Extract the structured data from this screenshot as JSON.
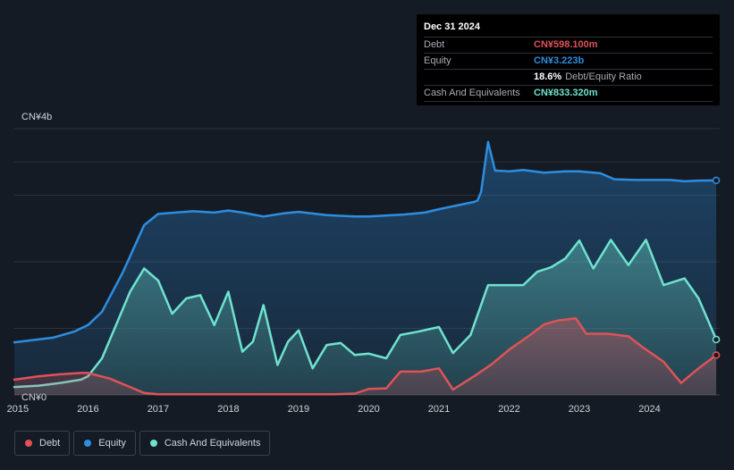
{
  "tooltip": {
    "date": "Dec 31 2024",
    "debt_label": "Debt",
    "debt_value": "CN¥598.100m",
    "equity_label": "Equity",
    "equity_value": "CN¥3.223b",
    "ratio_value": "18.6%",
    "ratio_label": "Debt/Equity Ratio",
    "cash_label": "Cash And Equivalents",
    "cash_value": "CN¥833.320m"
  },
  "colors": {
    "debt": "#e05258",
    "equity": "#2d8ee0",
    "cash": "#6fe3cf",
    "background": "#151b24"
  },
  "legend": [
    {
      "label": "Debt",
      "color": "#e05258"
    },
    {
      "label": "Equity",
      "color": "#2d8ee0"
    },
    {
      "label": "Cash And Equivalents",
      "color": "#6fe3cf"
    }
  ],
  "chart_data": {
    "type": "area",
    "y_unit": "CN¥ billions",
    "ylim": [
      0,
      4
    ],
    "xlim": [
      2014.95,
      2025.0
    ],
    "ytick_labels": [
      {
        "value": 4,
        "label": "CN¥4b"
      },
      {
        "value": 0,
        "label": "CN¥0"
      }
    ],
    "gridlines": [
      4,
      3.5,
      3,
      2,
      1
    ],
    "x_ticks": [
      2015,
      2016,
      2017,
      2018,
      2019,
      2020,
      2021,
      2022,
      2023,
      2024
    ],
    "x_tick_labels": [
      "2015",
      "2016",
      "2017",
      "2018",
      "2019",
      "2020",
      "2021",
      "2022",
      "2023",
      "2024"
    ],
    "series": [
      {
        "name": "Equity",
        "key": "equity",
        "points": [
          [
            2014.95,
            0.79
          ],
          [
            2015.5,
            0.86
          ],
          [
            2015.8,
            0.95
          ],
          [
            2016.0,
            1.05
          ],
          [
            2016.2,
            1.25
          ],
          [
            2016.5,
            1.85
          ],
          [
            2016.8,
            2.55
          ],
          [
            2017.0,
            2.72
          ],
          [
            2017.5,
            2.76
          ],
          [
            2017.8,
            2.74
          ],
          [
            2018.0,
            2.77
          ],
          [
            2018.2,
            2.74
          ],
          [
            2018.5,
            2.68
          ],
          [
            2018.8,
            2.73
          ],
          [
            2019.0,
            2.75
          ],
          [
            2019.4,
            2.7
          ],
          [
            2019.8,
            2.68
          ],
          [
            2020.0,
            2.68
          ],
          [
            2020.5,
            2.71
          ],
          [
            2020.8,
            2.74
          ],
          [
            2021.0,
            2.79
          ],
          [
            2021.5,
            2.9
          ],
          [
            2021.55,
            2.92
          ],
          [
            2021.6,
            3.05
          ],
          [
            2021.7,
            3.8
          ],
          [
            2021.8,
            3.37
          ],
          [
            2022.0,
            3.36
          ],
          [
            2022.2,
            3.38
          ],
          [
            2022.5,
            3.34
          ],
          [
            2022.8,
            3.36
          ],
          [
            2023.0,
            3.36
          ],
          [
            2023.3,
            3.33
          ],
          [
            2023.5,
            3.24
          ],
          [
            2023.8,
            3.23
          ],
          [
            2024.0,
            3.23
          ],
          [
            2024.3,
            3.23
          ],
          [
            2024.5,
            3.21
          ],
          [
            2024.7,
            3.22
          ],
          [
            2024.95,
            3.223
          ]
        ]
      },
      {
        "name": "Cash And Equivalents",
        "key": "cash",
        "points": [
          [
            2014.95,
            0.12
          ],
          [
            2015.3,
            0.14
          ],
          [
            2015.6,
            0.18
          ],
          [
            2015.9,
            0.23
          ],
          [
            2016.0,
            0.28
          ],
          [
            2016.2,
            0.55
          ],
          [
            2016.4,
            1.05
          ],
          [
            2016.6,
            1.55
          ],
          [
            2016.8,
            1.9
          ],
          [
            2017.0,
            1.72
          ],
          [
            2017.2,
            1.22
          ],
          [
            2017.4,
            1.45
          ],
          [
            2017.6,
            1.5
          ],
          [
            2017.8,
            1.05
          ],
          [
            2018.0,
            1.55
          ],
          [
            2018.2,
            0.65
          ],
          [
            2018.35,
            0.8
          ],
          [
            2018.5,
            1.35
          ],
          [
            2018.7,
            0.45
          ],
          [
            2018.85,
            0.8
          ],
          [
            2019.0,
            0.97
          ],
          [
            2019.2,
            0.4
          ],
          [
            2019.4,
            0.75
          ],
          [
            2019.6,
            0.78
          ],
          [
            2019.8,
            0.6
          ],
          [
            2020.0,
            0.62
          ],
          [
            2020.25,
            0.55
          ],
          [
            2020.45,
            0.9
          ],
          [
            2020.7,
            0.95
          ],
          [
            2021.0,
            1.02
          ],
          [
            2021.2,
            0.63
          ],
          [
            2021.45,
            0.9
          ],
          [
            2021.7,
            1.65
          ],
          [
            2022.0,
            1.65
          ],
          [
            2022.2,
            1.65
          ],
          [
            2022.4,
            1.85
          ],
          [
            2022.6,
            1.92
          ],
          [
            2022.8,
            2.05
          ],
          [
            2023.0,
            2.32
          ],
          [
            2023.2,
            1.9
          ],
          [
            2023.45,
            2.33
          ],
          [
            2023.7,
            1.95
          ],
          [
            2023.95,
            2.33
          ],
          [
            2024.2,
            1.65
          ],
          [
            2024.5,
            1.75
          ],
          [
            2024.7,
            1.45
          ],
          [
            2024.95,
            0.833
          ]
        ]
      },
      {
        "name": "Debt",
        "key": "debt",
        "points": [
          [
            2014.95,
            0.23
          ],
          [
            2015.3,
            0.28
          ],
          [
            2015.6,
            0.31
          ],
          [
            2015.9,
            0.33
          ],
          [
            2016.0,
            0.33
          ],
          [
            2016.3,
            0.25
          ],
          [
            2016.6,
            0.12
          ],
          [
            2016.8,
            0.03
          ],
          [
            2017.0,
            0.01
          ],
          [
            2017.5,
            0.01
          ],
          [
            2018.0,
            0.01
          ],
          [
            2018.5,
            0.01
          ],
          [
            2019.0,
            0.01
          ],
          [
            2019.5,
            0.01
          ],
          [
            2019.8,
            0.02
          ],
          [
            2020.0,
            0.09
          ],
          [
            2020.25,
            0.1
          ],
          [
            2020.45,
            0.35
          ],
          [
            2020.75,
            0.35
          ],
          [
            2021.0,
            0.4
          ],
          [
            2021.2,
            0.08
          ],
          [
            2021.5,
            0.28
          ],
          [
            2021.75,
            0.46
          ],
          [
            2022.0,
            0.68
          ],
          [
            2022.3,
            0.9
          ],
          [
            2022.5,
            1.06
          ],
          [
            2022.7,
            1.12
          ],
          [
            2022.95,
            1.15
          ],
          [
            2023.1,
            0.92
          ],
          [
            2023.4,
            0.92
          ],
          [
            2023.7,
            0.88
          ],
          [
            2023.9,
            0.72
          ],
          [
            2024.2,
            0.5
          ],
          [
            2024.45,
            0.18
          ],
          [
            2024.7,
            0.4
          ],
          [
            2024.95,
            0.598
          ]
        ]
      }
    ]
  }
}
